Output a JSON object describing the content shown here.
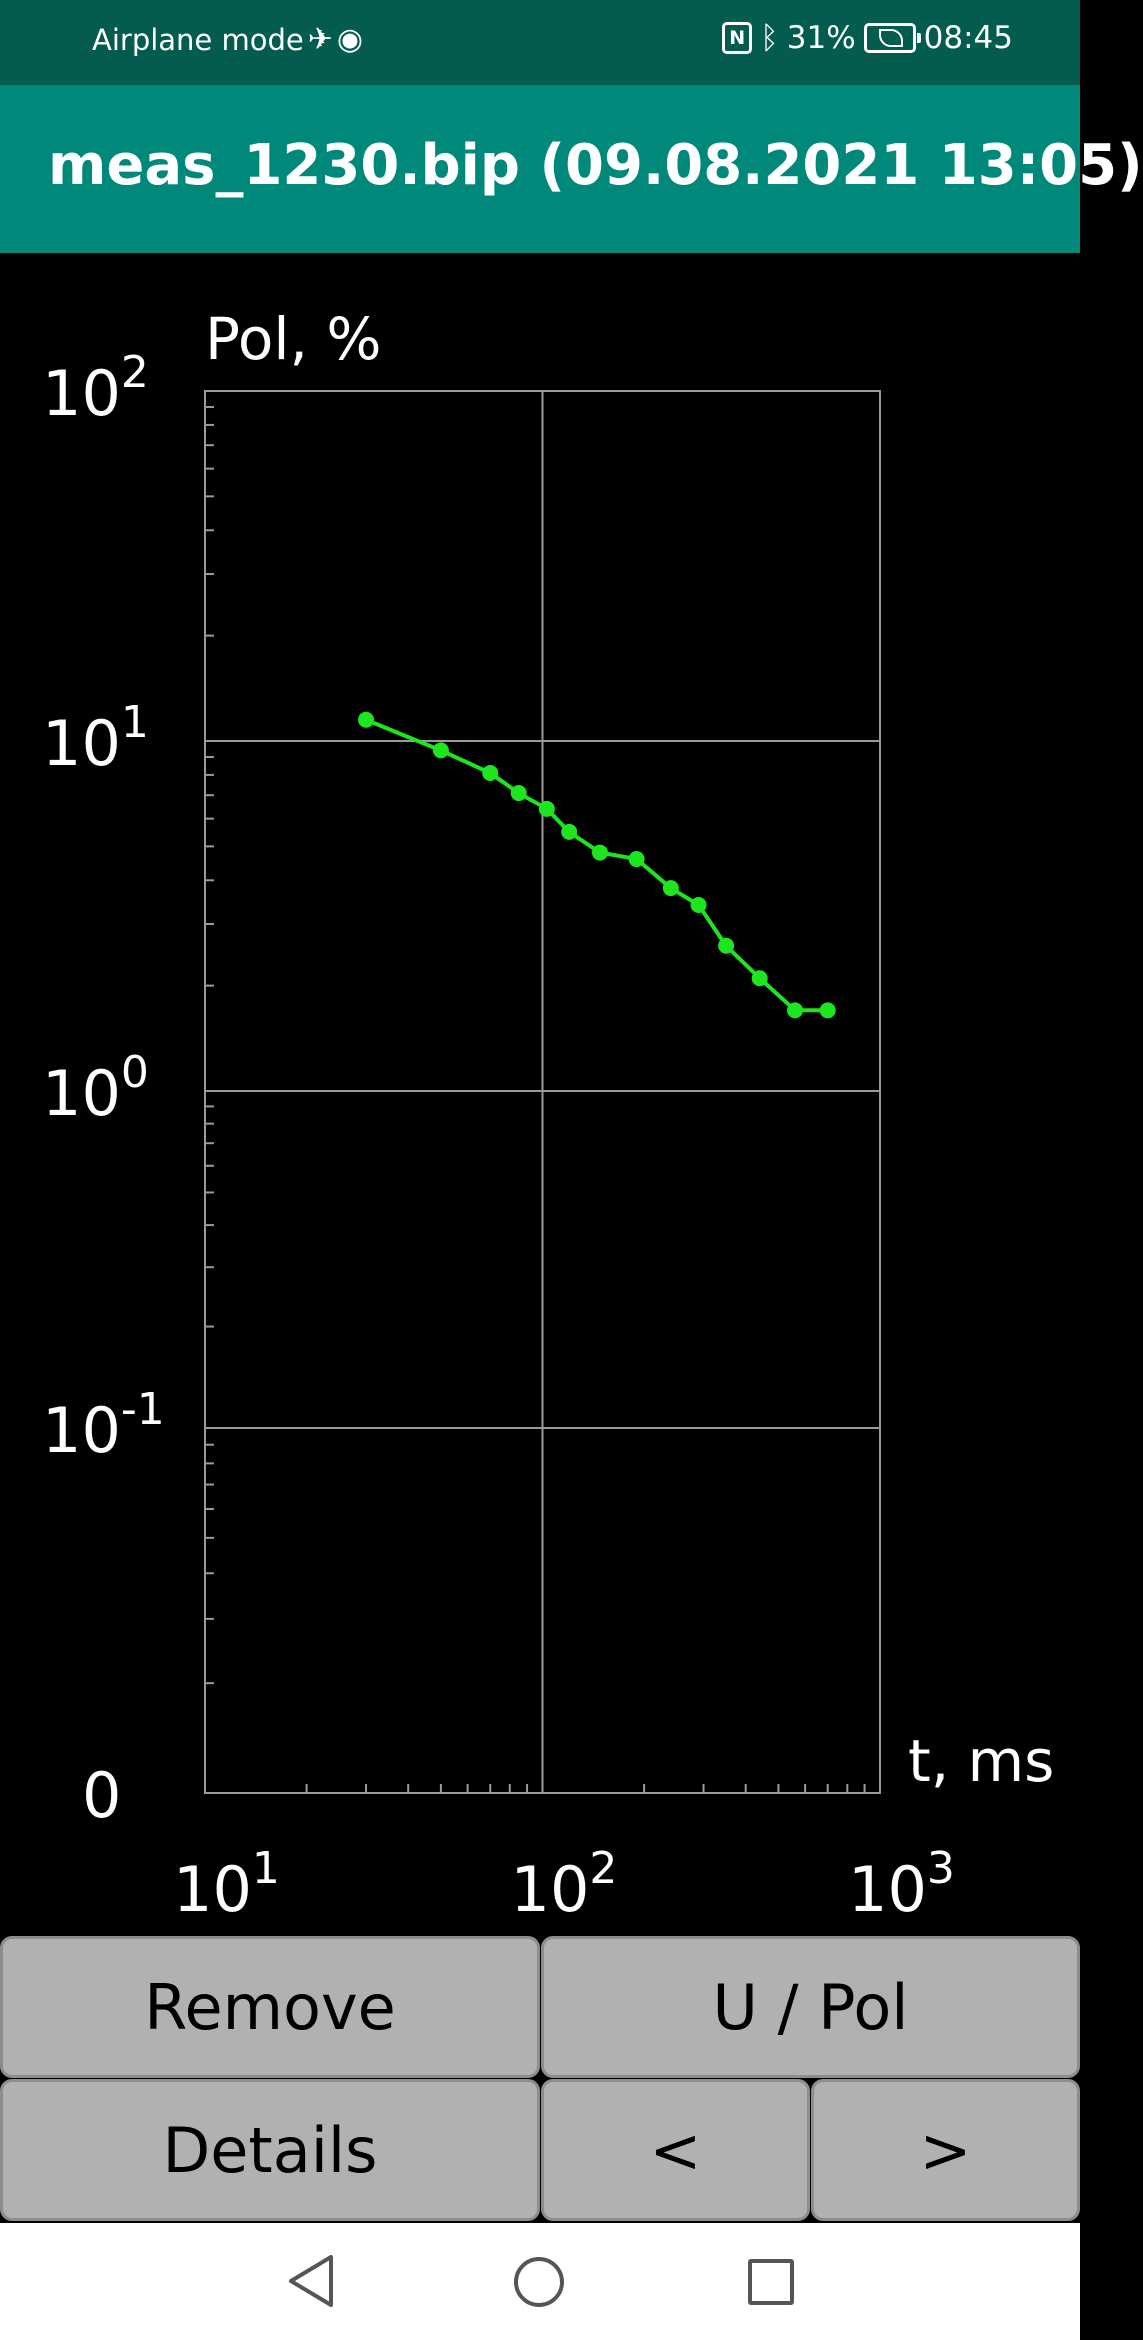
{
  "status_bar": {
    "airplane_text": "Airplane mode",
    "battery": "31%",
    "time": "08:45",
    "icons": [
      "airplane-icon",
      "eye-icon",
      "nfc-icon",
      "bluetooth-icon",
      "battery-icon"
    ]
  },
  "app_bar": {
    "title": "meas_1230.bip (09.08.2021 13:05)"
  },
  "chart_data": {
    "type": "line",
    "x_scale": "log",
    "y_scale": "log",
    "xlim": [
      10,
      1000
    ],
    "ylim": [
      0.01,
      100
    ],
    "ylabel": "Pol, %",
    "xlabel": "t, ms",
    "x_tick_labels": [
      {
        "base": "10",
        "exp": "1",
        "value": 10
      },
      {
        "base": "10",
        "exp": "2",
        "value": 100
      },
      {
        "base": "10",
        "exp": "3",
        "value": 1000
      }
    ],
    "y_tick_labels": [
      {
        "base": "10",
        "exp": "2",
        "value": 100
      },
      {
        "base": "10",
        "exp": "1",
        "value": 10
      },
      {
        "base": "10",
        "exp": "0",
        "value": 1
      },
      {
        "base": "10",
        "exp": "-1",
        "value": 0.1
      }
    ],
    "y_zero_label": "0",
    "grid": true,
    "line_color": "#1ee61e",
    "series": [
      {
        "x": [
          30,
          50,
          70,
          85,
          103,
          120,
          148,
          190,
          240,
          290,
          350,
          440,
          560,
          700
        ],
        "y": [
          11.5,
          9.4,
          8.1,
          7.1,
          6.4,
          5.5,
          4.8,
          4.6,
          3.8,
          3.4,
          2.6,
          2.1,
          1.7,
          1.7
        ]
      }
    ]
  },
  "buttons": {
    "remove": "Remove",
    "u_pol": "U / Pol",
    "details": "Details",
    "prev": "<",
    "next": ">"
  },
  "nav": {
    "icons": [
      "back-icon",
      "home-icon",
      "recent-apps-icon"
    ]
  }
}
